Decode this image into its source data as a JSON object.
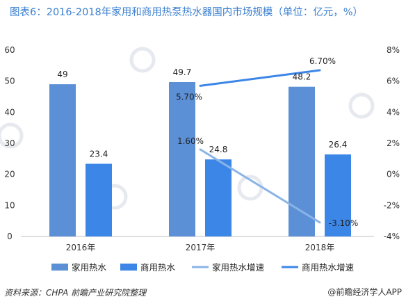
{
  "title": "图表6：2016-2018年家用和商用热泵热水器国内市场规模（单位：亿元，%）",
  "chart_data": {
    "type": "bar",
    "categories": [
      "2016年",
      "2017年",
      "2018年"
    ],
    "series": [
      {
        "name": "家用热水",
        "kind": "bar",
        "axis": "left",
        "color": "#5b8fd6",
        "values": [
          49,
          49.7,
          48.2
        ],
        "labels": [
          "49",
          "49.7",
          "48.2"
        ]
      },
      {
        "name": "商用热水",
        "kind": "bar",
        "axis": "left",
        "color": "#3b86e6",
        "values": [
          23.4,
          24.8,
          26.4
        ],
        "labels": [
          "23.4",
          "24.8",
          "26.4"
        ]
      },
      {
        "name": "家用热水增速",
        "kind": "line",
        "axis": "right",
        "color": "#8ab4e8",
        "values": [
          null,
          1.6,
          -3.1
        ],
        "labels": [
          "",
          "1.60%",
          "-3.10%"
        ]
      },
      {
        "name": "商用热水增速",
        "kind": "line",
        "axis": "right",
        "color": "#3b86e6",
        "values": [
          null,
          5.7,
          6.7
        ],
        "labels": [
          "",
          "5.70%",
          "6.70%"
        ]
      }
    ],
    "ylim_left": [
      0,
      60
    ],
    "yticks_left": [
      "0",
      "10",
      "20",
      "30",
      "40",
      "50",
      "60"
    ],
    "ylim_right": [
      -4,
      8
    ],
    "yticks_right": [
      "-4%",
      "-2%",
      "0%",
      "2%",
      "4%",
      "6%",
      "8%"
    ],
    "grid": false,
    "legend": "bottom"
  },
  "footer": {
    "source": "资料来源：CHPA 前瞻产业研究院整理",
    "brand": "@前瞻经济学人APP"
  }
}
